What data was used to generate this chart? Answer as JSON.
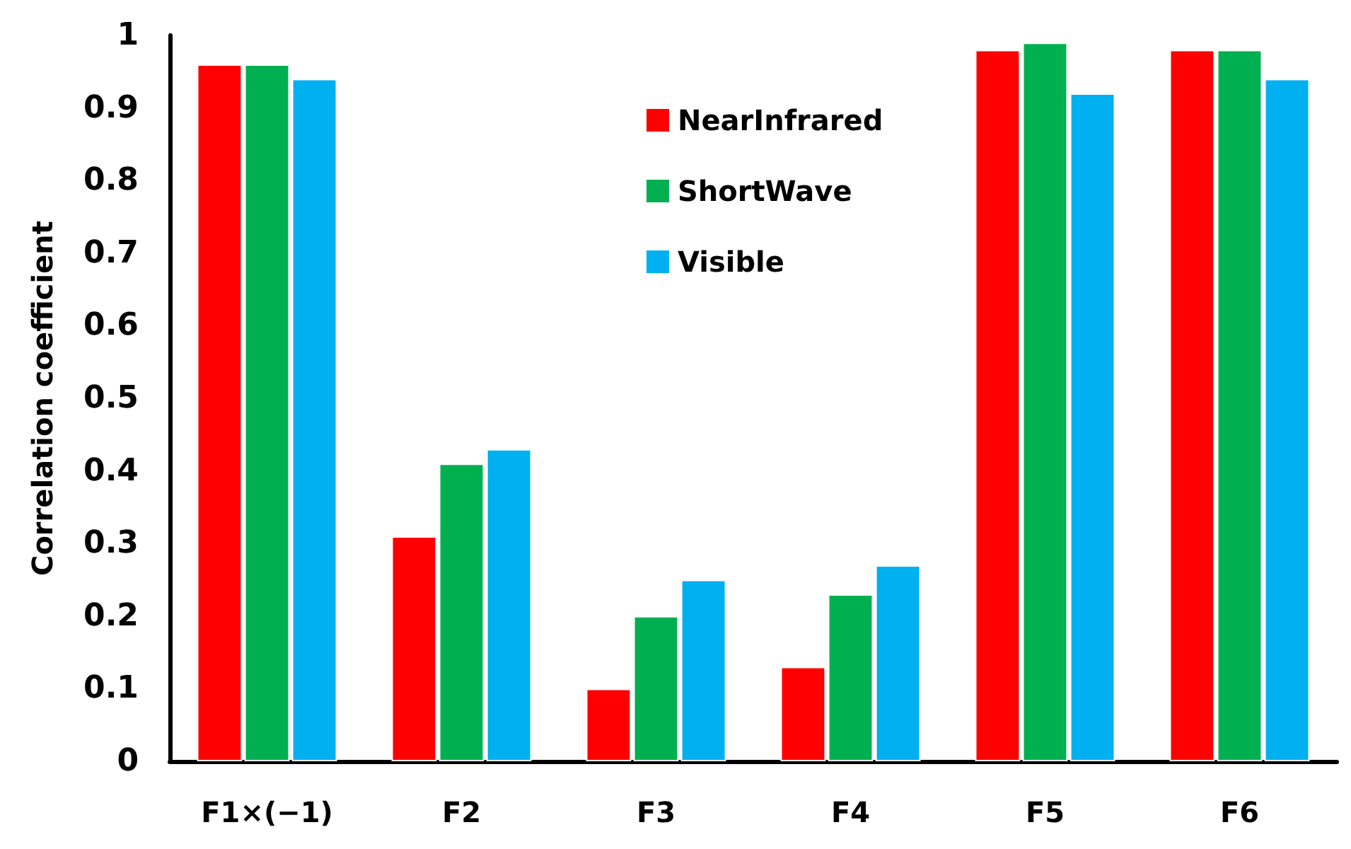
{
  "chart_data": {
    "type": "bar",
    "ylabel": "Correlation coefficient",
    "categories": [
      "F1×(−1)",
      "F2",
      "F3",
      "F4",
      "F5",
      "F6"
    ],
    "series": [
      {
        "name": "NearInfrared",
        "color": "#ff0000",
        "values": [
          0.96,
          0.31,
          0.1,
          0.13,
          0.98,
          0.98
        ]
      },
      {
        "name": "ShortWave",
        "color": "#00b050",
        "values": [
          0.96,
          0.41,
          0.2,
          0.23,
          0.99,
          0.98
        ]
      },
      {
        "name": "Visible",
        "color": "#00b0f0",
        "values": [
          0.94,
          0.43,
          0.25,
          0.27,
          0.92,
          0.94
        ]
      }
    ],
    "ylim": [
      0,
      1
    ],
    "yticks": [
      0,
      0.1,
      0.2,
      0.3,
      0.4,
      0.5,
      0.6,
      0.7,
      0.8,
      0.9,
      1
    ],
    "grid": false,
    "legend": "top"
  }
}
